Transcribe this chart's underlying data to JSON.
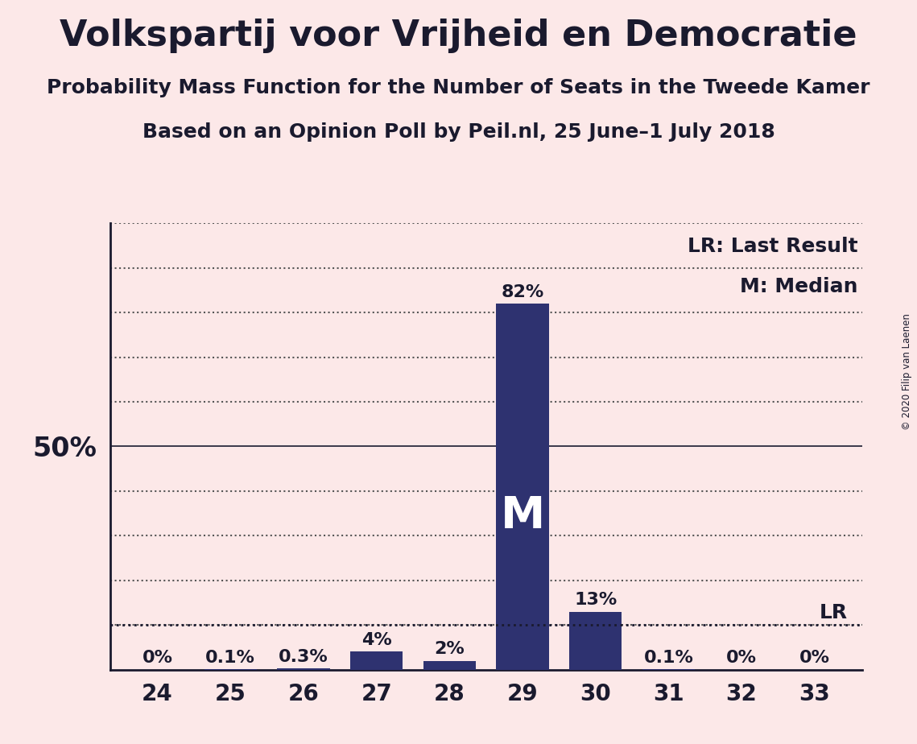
{
  "title": "Volkspartij voor Vrijheid en Democratie",
  "subtitle1": "Probability Mass Function for the Number of Seats in the Tweede Kamer",
  "subtitle2": "Based on an Opinion Poll by Peil.nl, 25 June–1 July 2018",
  "copyright": "© 2020 Filip van Laenen",
  "categories": [
    24,
    25,
    26,
    27,
    28,
    29,
    30,
    31,
    32,
    33
  ],
  "values": [
    0.0,
    0.1,
    0.3,
    4.0,
    2.0,
    82.0,
    13.0,
    0.1,
    0.0,
    0.0
  ],
  "labels": [
    "0%",
    "0.1%",
    "0.3%",
    "4%",
    "2%",
    "82%",
    "13%",
    "0.1%",
    "0%",
    "0%"
  ],
  "bar_color": "#2e3270",
  "background_color": "#fce8e8",
  "median_seat": 29,
  "median_label": "M",
  "lr_value": 10.0,
  "lr_label": "LR",
  "legend_lr": "LR: Last Result",
  "legend_m": "M: Median",
  "ylim": [
    0,
    100
  ],
  "grid_yticks": [
    10,
    20,
    30,
    40,
    50,
    60,
    70,
    80,
    90,
    100
  ],
  "ylabel_50": "50%",
  "title_fontsize": 32,
  "subtitle_fontsize": 18,
  "label_fontsize": 16,
  "tick_fontsize": 20,
  "bar_width": 0.72
}
